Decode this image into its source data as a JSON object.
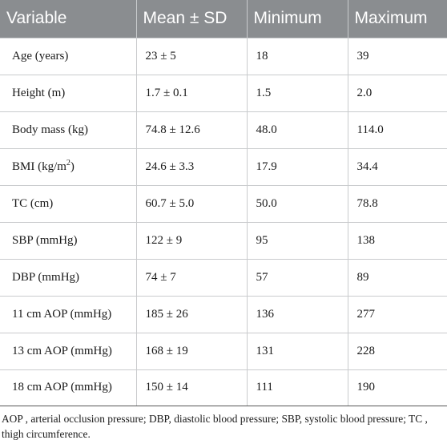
{
  "table": {
    "headers": [
      "Variable",
      "Mean ± SD",
      "Minimum",
      "Maximum"
    ],
    "rows": [
      {
        "variable": "Age (years)",
        "mean_sd": "23 ± 5",
        "min": "18",
        "max": "39"
      },
      {
        "variable": "Height (m)",
        "mean_sd": "1.7 ± 0.1",
        "min": "1.5",
        "max": "2.0"
      },
      {
        "variable": "Body mass (kg)",
        "mean_sd": "74.8 ± 12.6",
        "min": "48.0",
        "max": "114.0"
      },
      {
        "variable": "BMI (kg/m",
        "variable_sup": "2",
        "variable_suffix": ")",
        "mean_sd": "24.6 ± 3.3",
        "min": "17.9",
        "max": "34.4"
      },
      {
        "variable": "TC (cm)",
        "mean_sd": "60.7 ± 5.0",
        "min": "50.0",
        "max": "78.8"
      },
      {
        "variable": "SBP (mmHg)",
        "mean_sd": "122 ± 9",
        "min": "95",
        "max": "138"
      },
      {
        "variable": "DBP (mmHg)",
        "mean_sd": "74 ± 7",
        "min": "57",
        "max": "89"
      },
      {
        "variable": "11 cm AOP (mmHg)",
        "mean_sd": "185 ± 26",
        "min": "136",
        "max": "277"
      },
      {
        "variable": "13 cm AOP (mmHg)",
        "mean_sd": "168 ± 19",
        "min": "131",
        "max": "228"
      },
      {
        "variable": "18 cm AOP (mmHg)",
        "mean_sd": "150 ± 14",
        "min": "111",
        "max": "190"
      }
    ]
  },
  "footnote": "AOP , arterial occlusion pressure; DBP, diastolic blood pressure; SBP, systolic blood pressure; TC , thigh circumference.",
  "colors": {
    "header_bg": "#8a8d90",
    "header_text": "#ffffff",
    "grid": "#c9cbcd",
    "text": "#1a1a1a"
  }
}
